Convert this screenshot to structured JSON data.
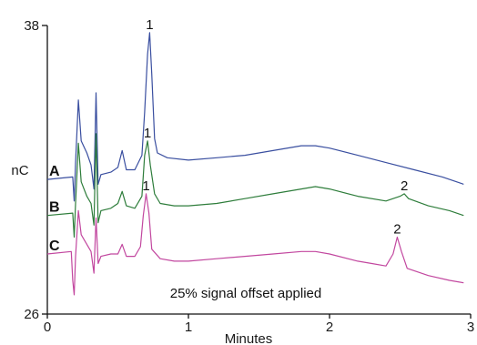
{
  "chart_data": {
    "type": "line",
    "xlabel": "Minutes",
    "ylabel": "nC",
    "xlim": [
      0,
      3
    ],
    "ylim": [
      26,
      38
    ],
    "x_ticks": [
      0,
      1,
      2,
      3
    ],
    "y_ticks": [
      26,
      38
    ],
    "grid": false,
    "annotation": "25% signal offset applied",
    "series": [
      {
        "name": "A",
        "color": "#3a4fa0",
        "peaks": [
          "1"
        ],
        "points": [
          [
            0,
            31.6
          ],
          [
            0.18,
            31.7
          ],
          [
            0.19,
            30.7
          ],
          [
            0.2,
            32.3
          ],
          [
            0.22,
            34.9
          ],
          [
            0.24,
            33.2
          ],
          [
            0.28,
            32.7
          ],
          [
            0.31,
            32.2
          ],
          [
            0.33,
            31.2
          ],
          [
            0.345,
            35.2
          ],
          [
            0.36,
            31.4
          ],
          [
            0.38,
            31.8
          ],
          [
            0.45,
            31.9
          ],
          [
            0.5,
            32.1
          ],
          [
            0.53,
            32.8
          ],
          [
            0.56,
            32.0
          ],
          [
            0.62,
            32.0
          ],
          [
            0.67,
            32.6
          ],
          [
            0.69,
            34.4
          ],
          [
            0.71,
            36.8
          ],
          [
            0.725,
            37.7
          ],
          [
            0.74,
            36.0
          ],
          [
            0.76,
            33.3
          ],
          [
            0.78,
            32.7
          ],
          [
            0.85,
            32.5
          ],
          [
            1.0,
            32.4
          ],
          [
            1.2,
            32.5
          ],
          [
            1.4,
            32.6
          ],
          [
            1.6,
            32.8
          ],
          [
            1.8,
            33.0
          ],
          [
            1.9,
            33.0
          ],
          [
            2.0,
            32.9
          ],
          [
            2.2,
            32.6
          ],
          [
            2.4,
            32.3
          ],
          [
            2.6,
            32.0
          ],
          [
            2.8,
            31.7
          ],
          [
            2.95,
            31.4
          ]
        ]
      },
      {
        "name": "B",
        "color": "#2e7d3b",
        "peaks": [
          "1",
          "2"
        ],
        "points": [
          [
            0,
            30.1
          ],
          [
            0.18,
            30.2
          ],
          [
            0.19,
            29.2
          ],
          [
            0.2,
            30.6
          ],
          [
            0.22,
            33.1
          ],
          [
            0.24,
            31.5
          ],
          [
            0.28,
            30.9
          ],
          [
            0.31,
            30.6
          ],
          [
            0.33,
            29.7
          ],
          [
            0.345,
            33.5
          ],
          [
            0.36,
            29.8
          ],
          [
            0.38,
            30.3
          ],
          [
            0.45,
            30.4
          ],
          [
            0.5,
            30.6
          ],
          [
            0.53,
            31.1
          ],
          [
            0.56,
            30.5
          ],
          [
            0.62,
            30.4
          ],
          [
            0.67,
            30.9
          ],
          [
            0.69,
            32.6
          ],
          [
            0.71,
            33.2
          ],
          [
            0.73,
            32.2
          ],
          [
            0.76,
            31.0
          ],
          [
            0.8,
            30.6
          ],
          [
            0.9,
            30.5
          ],
          [
            1.0,
            30.5
          ],
          [
            1.2,
            30.6
          ],
          [
            1.4,
            30.8
          ],
          [
            1.6,
            31.0
          ],
          [
            1.8,
            31.2
          ],
          [
            1.9,
            31.3
          ],
          [
            2.0,
            31.2
          ],
          [
            2.2,
            30.9
          ],
          [
            2.4,
            30.7
          ],
          [
            2.5,
            30.9
          ],
          [
            2.53,
            31.0
          ],
          [
            2.56,
            30.8
          ],
          [
            2.7,
            30.5
          ],
          [
            2.85,
            30.3
          ],
          [
            2.95,
            30.1
          ]
        ]
      },
      {
        "name": "C",
        "color": "#c2479f",
        "peaks": [
          "1",
          "2"
        ],
        "points": [
          [
            0,
            28.5
          ],
          [
            0.17,
            28.6
          ],
          [
            0.18,
            27.4
          ],
          [
            0.19,
            26.8
          ],
          [
            0.2,
            28.4
          ],
          [
            0.22,
            30.3
          ],
          [
            0.24,
            29.3
          ],
          [
            0.28,
            28.9
          ],
          [
            0.31,
            28.6
          ],
          [
            0.33,
            27.7
          ],
          [
            0.345,
            30.0
          ],
          [
            0.36,
            28.1
          ],
          [
            0.38,
            28.4
          ],
          [
            0.45,
            28.5
          ],
          [
            0.5,
            28.5
          ],
          [
            0.53,
            28.9
          ],
          [
            0.56,
            28.4
          ],
          [
            0.62,
            28.4
          ],
          [
            0.66,
            28.8
          ],
          [
            0.68,
            30.1
          ],
          [
            0.7,
            31.0
          ],
          [
            0.72,
            30.2
          ],
          [
            0.74,
            28.7
          ],
          [
            0.8,
            28.3
          ],
          [
            0.9,
            28.2
          ],
          [
            1.0,
            28.2
          ],
          [
            1.2,
            28.3
          ],
          [
            1.4,
            28.4
          ],
          [
            1.6,
            28.5
          ],
          [
            1.8,
            28.6
          ],
          [
            1.9,
            28.6
          ],
          [
            2.0,
            28.5
          ],
          [
            2.2,
            28.2
          ],
          [
            2.3,
            28.1
          ],
          [
            2.4,
            28.0
          ],
          [
            2.45,
            28.5
          ],
          [
            2.48,
            29.2
          ],
          [
            2.51,
            28.6
          ],
          [
            2.55,
            27.9
          ],
          [
            2.7,
            27.6
          ],
          [
            2.85,
            27.4
          ],
          [
            2.95,
            27.3
          ]
        ]
      }
    ],
    "peak_labels": [
      {
        "series": "A",
        "label": "1",
        "x": 0.725,
        "y": 37.7
      },
      {
        "series": "B",
        "label": "1",
        "x": 0.71,
        "y": 33.2
      },
      {
        "series": "B",
        "label": "2",
        "x": 2.53,
        "y": 31.0
      },
      {
        "series": "C",
        "label": "1",
        "x": 0.7,
        "y": 31.0
      },
      {
        "series": "C",
        "label": "2",
        "x": 2.48,
        "y": 29.2
      }
    ]
  }
}
